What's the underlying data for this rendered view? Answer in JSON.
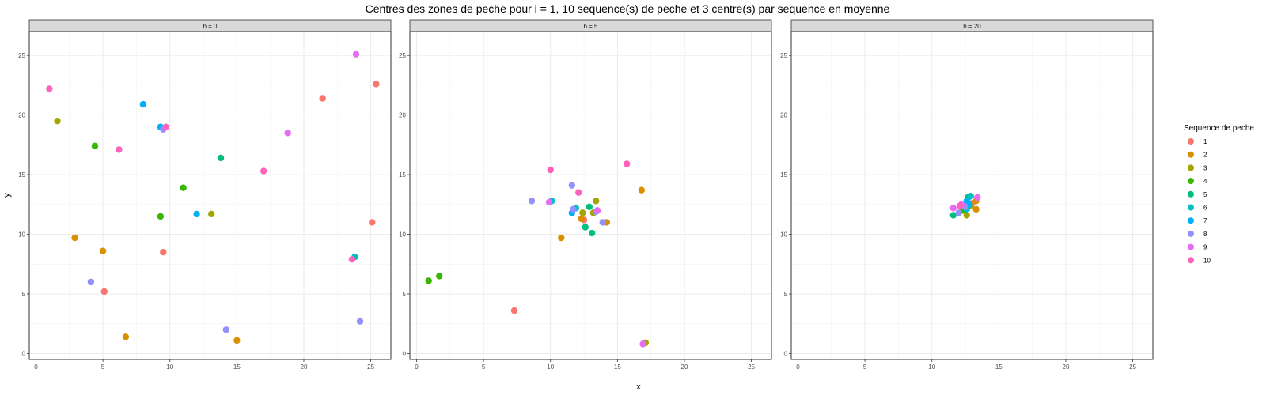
{
  "chart_data": {
    "type": "scatter",
    "title": "Centres des zones de peche pour i = 1, 10 sequence(s) de peche et 3 centre(s) par sequence en moyenne",
    "xlabel": "x",
    "ylabel": "y",
    "xlim": [
      -0.5,
      26.5
    ],
    "ylim": [
      -0.5,
      27
    ],
    "x_ticks": [
      0,
      5,
      10,
      15,
      20,
      25
    ],
    "y_ticks": [
      0,
      5,
      10,
      15,
      20,
      25
    ],
    "grid": true,
    "legend": {
      "title": "Sequence de peche",
      "position": "right",
      "entries": [
        {
          "label": "1",
          "color": "#F8766D"
        },
        {
          "label": "2",
          "color": "#D89000"
        },
        {
          "label": "3",
          "color": "#A3A500"
        },
        {
          "label": "4",
          "color": "#39B600"
        },
        {
          "label": "5",
          "color": "#00BF7D"
        },
        {
          "label": "6",
          "color": "#00BFC4"
        },
        {
          "label": "7",
          "color": "#00B0F6"
        },
        {
          "label": "8",
          "color": "#9590FF"
        },
        {
          "label": "9",
          "color": "#E76BF3"
        },
        {
          "label": "10",
          "color": "#FF62BC"
        }
      ]
    },
    "panels": [
      {
        "label": "b = 0",
        "points": [
          {
            "x": 21.4,
            "y": 21.4,
            "seq": "1"
          },
          {
            "x": 25.4,
            "y": 22.6,
            "seq": "1"
          },
          {
            "x": 25.1,
            "y": 11.0,
            "seq": "1"
          },
          {
            "x": 9.5,
            "y": 8.5,
            "seq": "1"
          },
          {
            "x": 5.1,
            "y": 5.2,
            "seq": "1"
          },
          {
            "x": 2.9,
            "y": 9.7,
            "seq": "2"
          },
          {
            "x": 5.0,
            "y": 8.6,
            "seq": "2"
          },
          {
            "x": 6.7,
            "y": 1.4,
            "seq": "2"
          },
          {
            "x": 15.0,
            "y": 1.1,
            "seq": "2"
          },
          {
            "x": 1.6,
            "y": 19.5,
            "seq": "3"
          },
          {
            "x": 13.1,
            "y": 11.7,
            "seq": "3"
          },
          {
            "x": 4.4,
            "y": 17.4,
            "seq": "4"
          },
          {
            "x": 11.0,
            "y": 13.9,
            "seq": "4"
          },
          {
            "x": 9.3,
            "y": 11.5,
            "seq": "4"
          },
          {
            "x": 13.8,
            "y": 16.4,
            "seq": "5"
          },
          {
            "x": 23.8,
            "y": 8.1,
            "seq": "6"
          },
          {
            "x": 8.0,
            "y": 20.9,
            "seq": "7"
          },
          {
            "x": 9.3,
            "y": 19.0,
            "seq": "7"
          },
          {
            "x": 12.0,
            "y": 11.7,
            "seq": "7"
          },
          {
            "x": 9.5,
            "y": 18.8,
            "seq": "8"
          },
          {
            "x": 4.1,
            "y": 6.0,
            "seq": "8"
          },
          {
            "x": 14.2,
            "y": 2.0,
            "seq": "8"
          },
          {
            "x": 24.2,
            "y": 2.7,
            "seq": "8"
          },
          {
            "x": 23.9,
            "y": 25.1,
            "seq": "9"
          },
          {
            "x": 18.8,
            "y": 18.5,
            "seq": "9"
          },
          {
            "x": 1.0,
            "y": 22.2,
            "seq": "10"
          },
          {
            "x": 9.7,
            "y": 19.0,
            "seq": "10"
          },
          {
            "x": 6.2,
            "y": 17.1,
            "seq": "10"
          },
          {
            "x": 17.0,
            "y": 15.3,
            "seq": "10"
          },
          {
            "x": 23.6,
            "y": 7.9,
            "seq": "10"
          }
        ]
      },
      {
        "label": "b = 5",
        "points": [
          {
            "x": 7.3,
            "y": 3.6,
            "seq": "1"
          },
          {
            "x": 12.5,
            "y": 11.2,
            "seq": "1"
          },
          {
            "x": 16.8,
            "y": 13.7,
            "seq": "2"
          },
          {
            "x": 10.8,
            "y": 9.7,
            "seq": "2"
          },
          {
            "x": 14.2,
            "y": 11.0,
            "seq": "2"
          },
          {
            "x": 12.3,
            "y": 11.3,
            "seq": "2"
          },
          {
            "x": 13.4,
            "y": 12.8,
            "seq": "3"
          },
          {
            "x": 17.1,
            "y": 0.9,
            "seq": "3"
          },
          {
            "x": 12.4,
            "y": 11.8,
            "seq": "3"
          },
          {
            "x": 13.2,
            "y": 11.8,
            "seq": "3"
          },
          {
            "x": 0.9,
            "y": 6.1,
            "seq": "4"
          },
          {
            "x": 1.7,
            "y": 6.5,
            "seq": "4"
          },
          {
            "x": 12.9,
            "y": 12.3,
            "seq": "5"
          },
          {
            "x": 12.6,
            "y": 10.6,
            "seq": "5"
          },
          {
            "x": 13.1,
            "y": 10.1,
            "seq": "5"
          },
          {
            "x": 10.1,
            "y": 12.8,
            "seq": "6"
          },
          {
            "x": 11.9,
            "y": 12.2,
            "seq": "6"
          },
          {
            "x": 11.6,
            "y": 11.8,
            "seq": "7"
          },
          {
            "x": 8.6,
            "y": 12.8,
            "seq": "8"
          },
          {
            "x": 11.6,
            "y": 14.1,
            "seq": "8"
          },
          {
            "x": 11.7,
            "y": 12.1,
            "seq": "8"
          },
          {
            "x": 13.9,
            "y": 11.0,
            "seq": "8"
          },
          {
            "x": 13.4,
            "y": 11.9,
            "seq": "8"
          },
          {
            "x": 16.9,
            "y": 0.8,
            "seq": "9"
          },
          {
            "x": 13.5,
            "y": 12.0,
            "seq": "9"
          },
          {
            "x": 9.9,
            "y": 12.7,
            "seq": "9"
          },
          {
            "x": 10.0,
            "y": 15.4,
            "seq": "10"
          },
          {
            "x": 15.7,
            "y": 15.9,
            "seq": "10"
          },
          {
            "x": 12.1,
            "y": 13.5,
            "seq": "10"
          }
        ]
      },
      {
        "label": "b = 20",
        "points": [
          {
            "x": 12.2,
            "y": 12.3,
            "seq": "1"
          },
          {
            "x": 13.0,
            "y": 12.6,
            "seq": "1"
          },
          {
            "x": 13.3,
            "y": 12.1,
            "seq": "2"
          },
          {
            "x": 13.3,
            "y": 12.8,
            "seq": "2"
          },
          {
            "x": 12.6,
            "y": 11.6,
            "seq": "3"
          },
          {
            "x": 12.9,
            "y": 12.4,
            "seq": "3"
          },
          {
            "x": 12.3,
            "y": 12.0,
            "seq": "4"
          },
          {
            "x": 11.6,
            "y": 11.6,
            "seq": "5"
          },
          {
            "x": 12.7,
            "y": 13.1,
            "seq": "5"
          },
          {
            "x": 12.6,
            "y": 12.1,
            "seq": "6"
          },
          {
            "x": 12.9,
            "y": 13.2,
            "seq": "6"
          },
          {
            "x": 12.8,
            "y": 12.5,
            "seq": "7"
          },
          {
            "x": 12.6,
            "y": 12.8,
            "seq": "7"
          },
          {
            "x": 12.0,
            "y": 11.8,
            "seq": "8"
          },
          {
            "x": 12.5,
            "y": 12.3,
            "seq": "8"
          },
          {
            "x": 11.6,
            "y": 12.2,
            "seq": "9"
          },
          {
            "x": 12.2,
            "y": 12.5,
            "seq": "9"
          },
          {
            "x": 13.4,
            "y": 13.1,
            "seq": "9"
          },
          {
            "x": 12.1,
            "y": 12.4,
            "seq": "10"
          }
        ]
      }
    ]
  }
}
